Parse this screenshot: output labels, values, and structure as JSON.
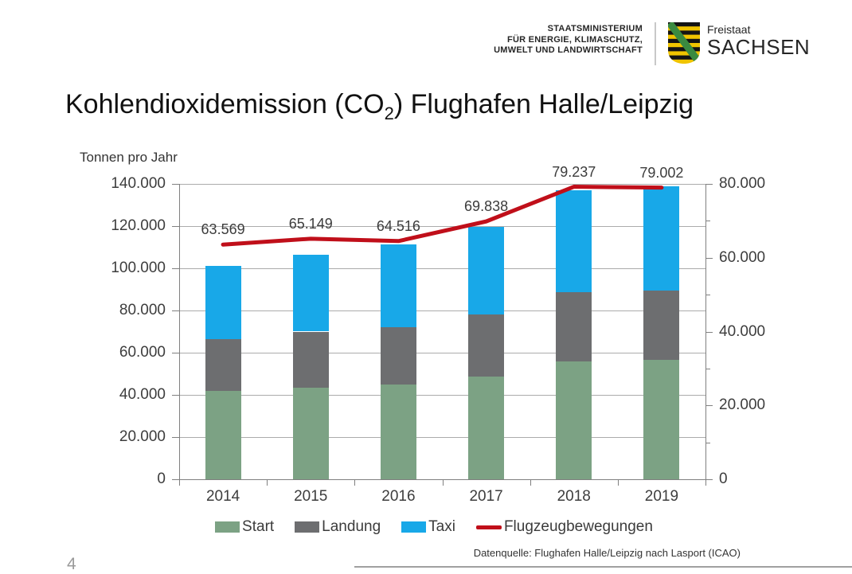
{
  "header": {
    "ministry_lines": [
      "STAATSMINISTERIUM",
      "FÜR ENERGIE, KLIMASCHUTZ,",
      "UMWELT UND LANDWIRTSCHAFT"
    ],
    "state_small": "Freistaat",
    "state_large": "SACHSEN",
    "shield_colors": {
      "gold": "#f0c400",
      "black": "#141414",
      "green": "#3a8a40"
    }
  },
  "title": {
    "prefix": "Kohlendioxidemission (CO",
    "sub": "2",
    "suffix": ") Flughafen Halle/Leipzig"
  },
  "chart_data": {
    "type": "bar",
    "subtype": "stacked-bars-with-line-overlay",
    "title": "Kohlendioxidemission (CO2) Flughafen Halle/Leipzig",
    "y_axis_label": "Tonnen pro Jahr",
    "categories": [
      "2014",
      "2015",
      "2016",
      "2017",
      "2018",
      "2019"
    ],
    "series": [
      {
        "name": "Start",
        "type": "bar",
        "color": "#7CA284",
        "values": [
          42000,
          43500,
          45000,
          48500,
          56000,
          56500
        ]
      },
      {
        "name": "Landung",
        "type": "bar",
        "color": "#6D6E70",
        "values": [
          24500,
          26500,
          27000,
          29500,
          32500,
          33000
        ]
      },
      {
        "name": "Taxi",
        "type": "bar",
        "color": "#18A8E8",
        "values": [
          34500,
          36500,
          39500,
          41500,
          48500,
          49500
        ]
      },
      {
        "name": "Flugzeugbewegungen",
        "type": "line",
        "axis": "right",
        "color": "#C00F1A",
        "values": [
          63569,
          65149,
          64516,
          69838,
          79237,
          79002
        ],
        "labels": [
          "63.569",
          "65.149",
          "64.516",
          "69.838",
          "79.237",
          "79.002"
        ]
      }
    ],
    "left_axis": {
      "min": 0,
      "max": 140000,
      "step": 20000,
      "tick_labels": [
        "0",
        "20.000",
        "40.000",
        "60.000",
        "80.000",
        "100.000",
        "120.000",
        "140.000"
      ]
    },
    "right_axis": {
      "min": 0,
      "max": 80000,
      "step": 20000,
      "minor_step": 10000,
      "tick_labels": [
        "0",
        "20.000",
        "40.000",
        "60.000",
        "80.000"
      ]
    },
    "grid": true,
    "legend_position": "bottom"
  },
  "footer": {
    "source": "Datenquelle: Flughafen Halle/Leipzig nach Lasport (ICAO)",
    "page_number": "4"
  }
}
